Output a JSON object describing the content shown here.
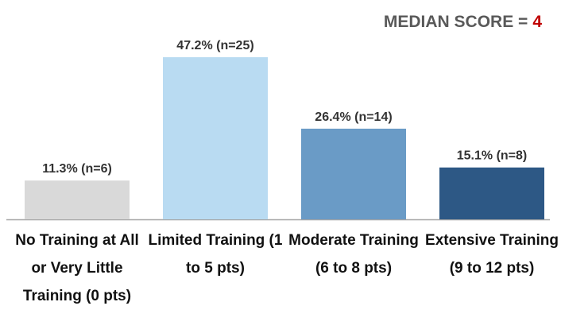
{
  "chart_data": {
    "type": "bar",
    "annotation": {
      "text": "MEDIAN SCORE =",
      "value": 4
    },
    "categories": [
      "No Training at All or Very Little Training (0 pts)",
      "Limited Training (1 to 5 pts)",
      "Moderate Training (6 to 8 pts)",
      "Extensive Training (9 to 12 pts)"
    ],
    "values": [
      11.3,
      47.2,
      26.4,
      15.1
    ],
    "value_labels": [
      "11.3% (n=6)",
      "47.2% (n=25)",
      "26.4% (n=14)",
      "15.1% (n=8)"
    ],
    "colors": [
      "#d9d9d9",
      "#b9dbf2",
      "#6a9bc6",
      "#2d5885"
    ]
  }
}
